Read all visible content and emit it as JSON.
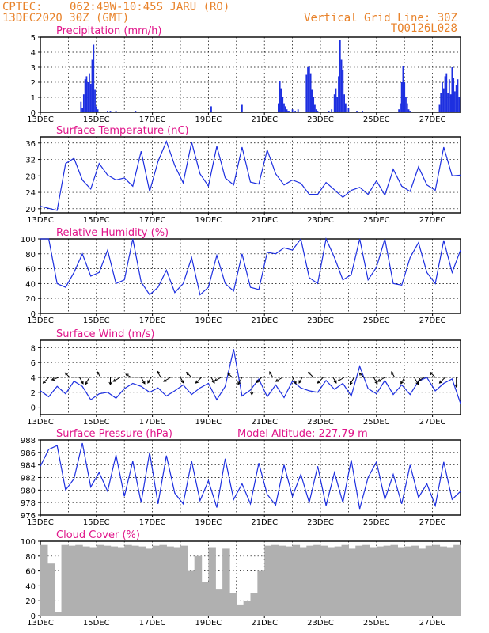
{
  "header": {
    "source": "CPTEC:",
    "location": "062:49W-10:45S  JARU (RO)",
    "date": "13DEC2020 30Z (GMT)",
    "grid_note": "Vertical Grid Line: 30Z",
    "code": "TQ0126L028"
  },
  "colors": {
    "title": "#e0158a",
    "header": "#e8822a",
    "series": "#1d2fe0",
    "cloud": "#b0b0b0"
  },
  "x_ticks": [
    "13DEC",
    "15DEC",
    "17DEC",
    "19DEC",
    "21DEC",
    "23DEC",
    "25DEC",
    "27DEC"
  ],
  "chart_data": [
    {
      "id": "precip",
      "type": "bar",
      "title": "Precipitation (mm/h)",
      "ylim": [
        0,
        5
      ],
      "yticks": [
        0,
        1,
        2,
        3,
        4,
        5
      ],
      "x": [
        1.45,
        1.5,
        1.55,
        1.6,
        1.65,
        1.7,
        1.75,
        1.8,
        1.85,
        1.9,
        1.95,
        2.0,
        2.05,
        2.4,
        2.5,
        2.7,
        3.4,
        6.1,
        7.2,
        8.5,
        8.55,
        8.6,
        8.65,
        8.7,
        8.75,
        8.8,
        8.85,
        8.9,
        9.0,
        9.1,
        9.2,
        9.5,
        9.55,
        9.6,
        9.65,
        9.7,
        9.75,
        9.8,
        9.85,
        9.9,
        10.3,
        10.4,
        10.5,
        10.55,
        10.6,
        10.65,
        10.7,
        10.75,
        10.8,
        10.85,
        10.9,
        11.0,
        11.3,
        11.5,
        12.8,
        12.85,
        12.9,
        12.95,
        13.0,
        13.05,
        13.1,
        13.15,
        13.2,
        14.25,
        14.3,
        14.35,
        14.4,
        14.45,
        14.5,
        14.55,
        14.6,
        14.65,
        14.7,
        14.75,
        14.8,
        14.85,
        14.9,
        14.95
      ],
      "values": [
        0.7,
        0.3,
        1.2,
        2.2,
        2.4,
        2.0,
        2.6,
        1.9,
        3.5,
        4.5,
        1.5,
        0.4,
        0.2,
        0.1,
        0.1,
        0.1,
        0.1,
        0.4,
        0.5,
        0.6,
        2.1,
        1.6,
        1.0,
        0.6,
        0.4,
        0.2,
        0.1,
        0.1,
        0.2,
        0.1,
        0.2,
        2.5,
        3.0,
        3.1,
        2.6,
        1.5,
        1.0,
        0.5,
        0.2,
        0.1,
        0.1,
        0.2,
        1.2,
        1.6,
        1.0,
        2.4,
        4.8,
        3.5,
        2.8,
        1.2,
        0.6,
        0.3,
        0.1,
        0.1,
        0.2,
        0.6,
        2.0,
        3.1,
        2.0,
        1.0,
        0.6,
        0.2,
        0.1,
        0.5,
        1.3,
        2.0,
        1.6,
        2.4,
        2.6,
        1.3,
        2.2,
        1.2,
        3.0,
        2.3,
        1.4,
        1.8,
        2.2,
        1.0
      ]
    },
    {
      "id": "temp",
      "type": "line",
      "title": "Surface Temperature (nC)",
      "ylim": [
        19,
        37.5
      ],
      "yticks": [
        20,
        24,
        28,
        32,
        36
      ],
      "x": [
        0,
        0.3,
        0.6,
        0.9,
        1.2,
        1.5,
        1.8,
        2.1,
        2.4,
        2.7,
        3.0,
        3.3,
        3.6,
        3.9,
        4.2,
        4.5,
        4.8,
        5.1,
        5.4,
        5.7,
        6.0,
        6.3,
        6.6,
        6.9,
        7.2,
        7.5,
        7.8,
        8.1,
        8.4,
        8.7,
        9.0,
        9.3,
        9.6,
        9.9,
        10.2,
        10.5,
        10.8,
        11.1,
        11.4,
        11.7,
        12.0,
        12.3,
        12.6,
        12.9,
        13.2,
        13.5,
        13.8,
        14.1,
        14.4,
        14.7,
        15.0
      ],
      "values": [
        20.6,
        20.1,
        19.6,
        31.0,
        32.3,
        27.0,
        24.8,
        31.0,
        28.2,
        27.0,
        27.5,
        25.5,
        34.0,
        24.2,
        31.5,
        36.4,
        30.5,
        26.3,
        36.2,
        28.5,
        25.5,
        35.2,
        27.5,
        25.8,
        35.0,
        26.5,
        26.0,
        34.3,
        28.5,
        25.8,
        27.0,
        26.2,
        23.5,
        23.5,
        26.4,
        24.6,
        22.8,
        24.5,
        25.2,
        23.5,
        26.8,
        23.3,
        29.6,
        25.5,
        24.2,
        30.2,
        25.8,
        24.5,
        35.0,
        28.0,
        28.2
      ]
    },
    {
      "id": "rh",
      "type": "line",
      "title": "Relative Humidity (%)",
      "ylim": [
        0,
        100
      ],
      "yticks": [
        0,
        20,
        40,
        60,
        80,
        100
      ],
      "x": [
        0,
        0.3,
        0.6,
        0.9,
        1.2,
        1.5,
        1.8,
        2.1,
        2.4,
        2.7,
        3.0,
        3.3,
        3.6,
        3.9,
        4.2,
        4.5,
        4.8,
        5.1,
        5.4,
        5.7,
        6.0,
        6.3,
        6.6,
        6.9,
        7.2,
        7.5,
        7.8,
        8.1,
        8.4,
        8.7,
        9.0,
        9.3,
        9.6,
        9.9,
        10.2,
        10.5,
        10.8,
        11.1,
        11.4,
        11.7,
        12.0,
        12.3,
        12.6,
        12.9,
        13.2,
        13.5,
        13.8,
        14.1,
        14.4,
        14.7,
        15.0
      ],
      "values": [
        100,
        100,
        40,
        35,
        55,
        80,
        50,
        55,
        85,
        40,
        45,
        100,
        42,
        25,
        35,
        58,
        28,
        40,
        75,
        25,
        35,
        78,
        40,
        30,
        80,
        35,
        32,
        82,
        80,
        88,
        85,
        100,
        48,
        40,
        100,
        75,
        45,
        52,
        100,
        45,
        62,
        100,
        40,
        38,
        75,
        95,
        55,
        40,
        98,
        55,
        85
      ]
    },
    {
      "id": "wind",
      "type": "line",
      "title": "Surface Wind (m/s)",
      "ylim": [
        -1,
        9
      ],
      "yticks": [
        0,
        2,
        4,
        6,
        8
      ],
      "x": [
        0,
        0.3,
        0.6,
        0.9,
        1.2,
        1.5,
        1.8,
        2.1,
        2.4,
        2.7,
        3.0,
        3.3,
        3.6,
        3.9,
        4.2,
        4.5,
        4.8,
        5.1,
        5.4,
        5.7,
        6.0,
        6.3,
        6.6,
        6.9,
        7.2,
        7.5,
        7.8,
        8.1,
        8.4,
        8.7,
        9.0,
        9.3,
        9.6,
        9.9,
        10.2,
        10.5,
        10.8,
        11.1,
        11.4,
        11.7,
        12.0,
        12.3,
        12.6,
        12.9,
        13.2,
        13.5,
        13.8,
        14.1,
        14.4,
        14.7,
        15.0
      ],
      "values": [
        2.2,
        1.4,
        2.8,
        1.8,
        3.5,
        2.8,
        1.0,
        1.8,
        2.0,
        1.2,
        2.5,
        3.2,
        2.8,
        2.0,
        2.6,
        1.5,
        2.2,
        3.0,
        1.7,
        2.6,
        3.2,
        1.0,
        2.8,
        7.8,
        1.5,
        2.3,
        3.8,
        1.4,
        3.0,
        1.3,
        3.5,
        2.6,
        2.2,
        2.0,
        3.6,
        2.4,
        3.2,
        1.5,
        5.5,
        2.5,
        1.8,
        3.6,
        1.7,
        3.0,
        1.7,
        3.5,
        4.0,
        2.2,
        3.2,
        3.8,
        0.5
      ],
      "arrows_x": [
        0.3,
        0.65,
        1.05,
        1.4,
        1.75,
        2.15,
        2.5,
        2.85,
        3.25,
        3.6,
        3.95,
        4.3,
        4.65,
        5.0,
        5.4,
        5.75,
        6.1,
        6.45,
        6.85,
        7.2,
        7.55,
        7.9,
        8.3,
        8.65,
        9.0,
        9.35,
        9.75,
        10.1,
        10.45,
        10.85,
        11.2,
        11.55,
        11.9,
        12.3,
        12.65,
        13.0,
        13.35,
        13.7,
        14.1,
        14.45,
        14.85
      ],
      "arrows_angle": [
        225,
        200,
        135,
        300,
        240,
        120,
        270,
        210,
        150,
        300,
        240,
        120,
        210,
        300,
        135,
        225,
        300,
        210,
        135,
        240,
        270,
        225,
        120,
        210,
        300,
        240,
        135,
        225,
        300,
        210,
        240,
        135,
        300,
        210,
        120,
        240,
        300,
        210,
        135,
        225,
        270
      ],
      "arrows_len": [
        10,
        9,
        8,
        9,
        10,
        8,
        9,
        10,
        8,
        9,
        8,
        9,
        10,
        8,
        9,
        10,
        8,
        9,
        8,
        10,
        22,
        9,
        8,
        10,
        9,
        8,
        9,
        10,
        8,
        9,
        10,
        8,
        9,
        10,
        8,
        9,
        10,
        8,
        9,
        10,
        12
      ]
    },
    {
      "id": "pres",
      "type": "line",
      "title": "Surface Pressure (hPa)",
      "annotation": "Model Altitude: 227.79 m",
      "ylim": [
        976,
        988
      ],
      "yticks": [
        976,
        978,
        980,
        982,
        984,
        986,
        988
      ],
      "x": [
        0,
        0.3,
        0.6,
        0.9,
        1.2,
        1.5,
        1.8,
        2.1,
        2.4,
        2.7,
        3.0,
        3.3,
        3.6,
        3.9,
        4.2,
        4.5,
        4.8,
        5.1,
        5.4,
        5.7,
        6.0,
        6.3,
        6.6,
        6.9,
        7.2,
        7.5,
        7.8,
        8.1,
        8.4,
        8.7,
        9.0,
        9.3,
        9.6,
        9.9,
        10.2,
        10.5,
        10.8,
        11.1,
        11.4,
        11.7,
        12.0,
        12.3,
        12.6,
        12.9,
        13.2,
        13.5,
        13.8,
        14.1,
        14.4,
        14.7,
        15.0
      ],
      "values": [
        983.8,
        986.5,
        987.1,
        980.0,
        981.8,
        987.5,
        980.5,
        982.8,
        979.8,
        985.6,
        979.0,
        984.6,
        978.0,
        986.0,
        977.8,
        985.5,
        979.5,
        977.8,
        984.6,
        978.3,
        981.5,
        977.2,
        985.0,
        978.5,
        981.0,
        977.8,
        984.3,
        979.3,
        977.6,
        984.0,
        979.0,
        982.5,
        978.0,
        983.8,
        977.5,
        982.8,
        978.0,
        984.8,
        977.0,
        982.0,
        984.5,
        978.5,
        982.5,
        977.8,
        984.0,
        978.8,
        981.0,
        977.5,
        984.5,
        978.5,
        979.8
      ]
    },
    {
      "id": "cloud",
      "type": "bar",
      "title": "Cloud Cover (%)",
      "ylim": [
        0,
        100
      ],
      "yticks": [
        0,
        20,
        40,
        60,
        80,
        100
      ],
      "x": [
        0,
        0.25,
        0.5,
        0.75,
        1.0,
        1.25,
        1.5,
        1.75,
        2.0,
        2.25,
        2.5,
        2.75,
        3.0,
        3.25,
        3.5,
        3.75,
        4.0,
        4.25,
        4.5,
        4.75,
        5.0,
        5.25,
        5.5,
        5.75,
        6.0,
        6.25,
        6.5,
        6.75,
        7.0,
        7.25,
        7.5,
        7.75,
        8.0,
        8.25,
        8.5,
        8.75,
        9.0,
        9.25,
        9.5,
        9.75,
        10.0,
        10.25,
        10.5,
        10.75,
        11.0,
        11.25,
        11.5,
        11.75,
        12.0,
        12.25,
        12.5,
        12.75,
        13.0,
        13.25,
        13.5,
        13.75,
        14.0,
        14.25,
        14.5,
        14.75
      ],
      "values": [
        95,
        70,
        5,
        95,
        94,
        95,
        93,
        92,
        95,
        94,
        93,
        92,
        95,
        94,
        93,
        90,
        94,
        95,
        93,
        92,
        94,
        60,
        80,
        45,
        92,
        35,
        90,
        30,
        15,
        20,
        30,
        60,
        94,
        95,
        94,
        93,
        95,
        92,
        94,
        95,
        94,
        92,
        93,
        95,
        90,
        94,
        95,
        92,
        93,
        94,
        95,
        92,
        93,
        94,
        90,
        94,
        95,
        93,
        92,
        95
      ]
    }
  ]
}
